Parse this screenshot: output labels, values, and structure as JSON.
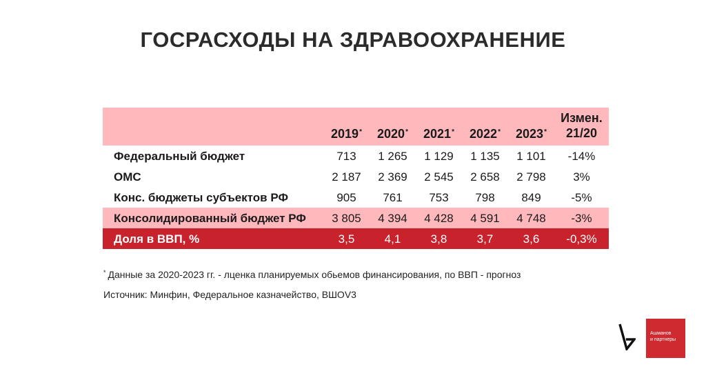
{
  "title": "ГОСРАСХОДЫ НА ЗДРАВООХРАНЕНИЕ",
  "table": {
    "header": {
      "years": [
        "2019",
        "2020",
        "2021",
        "2022",
        "2023"
      ],
      "year_mark": "*",
      "change_line1": "Измен.",
      "change_line2": "21/20"
    },
    "rows": [
      {
        "label": "Федеральный бюджет",
        "values": [
          "713",
          "1 265",
          "1 129",
          "1 135",
          "1 101"
        ],
        "change": "-14%"
      },
      {
        "label": "ОМС",
        "values": [
          "2 187",
          "2 369",
          "2 545",
          "2 658",
          "2 798"
        ],
        "change": "3%"
      },
      {
        "label": "Конс. бюджеты субъектов РФ",
        "values": [
          "905",
          "761",
          "753",
          "798",
          "849"
        ],
        "change": "-5%"
      },
      {
        "label": "Консолидированный бюджет РФ",
        "values": [
          "3 805",
          "4 394",
          "4 428",
          "4 591",
          "4 748"
        ],
        "change": "-3%"
      },
      {
        "label": "Доля в ВВП, %",
        "values": [
          "3,5",
          "4,1",
          "3,8",
          "3,7",
          "3,6"
        ],
        "change": "-0,3%"
      }
    ]
  },
  "footnote_mark": "*",
  "footnote": "Данные за 2020-2023 гг. - лценка планируемых обьемов финансирования, по ВВП -  прогноз",
  "source": "Источник: Минфин, Федеральное казначейство, ВШОV3",
  "brand": {
    "line1": "Ашманов",
    "line2": "и партнеры",
    "color": "#cf2a2f"
  },
  "colors": {
    "header_pink": "#ffb9bd",
    "highlight_red": "#c8232c"
  }
}
